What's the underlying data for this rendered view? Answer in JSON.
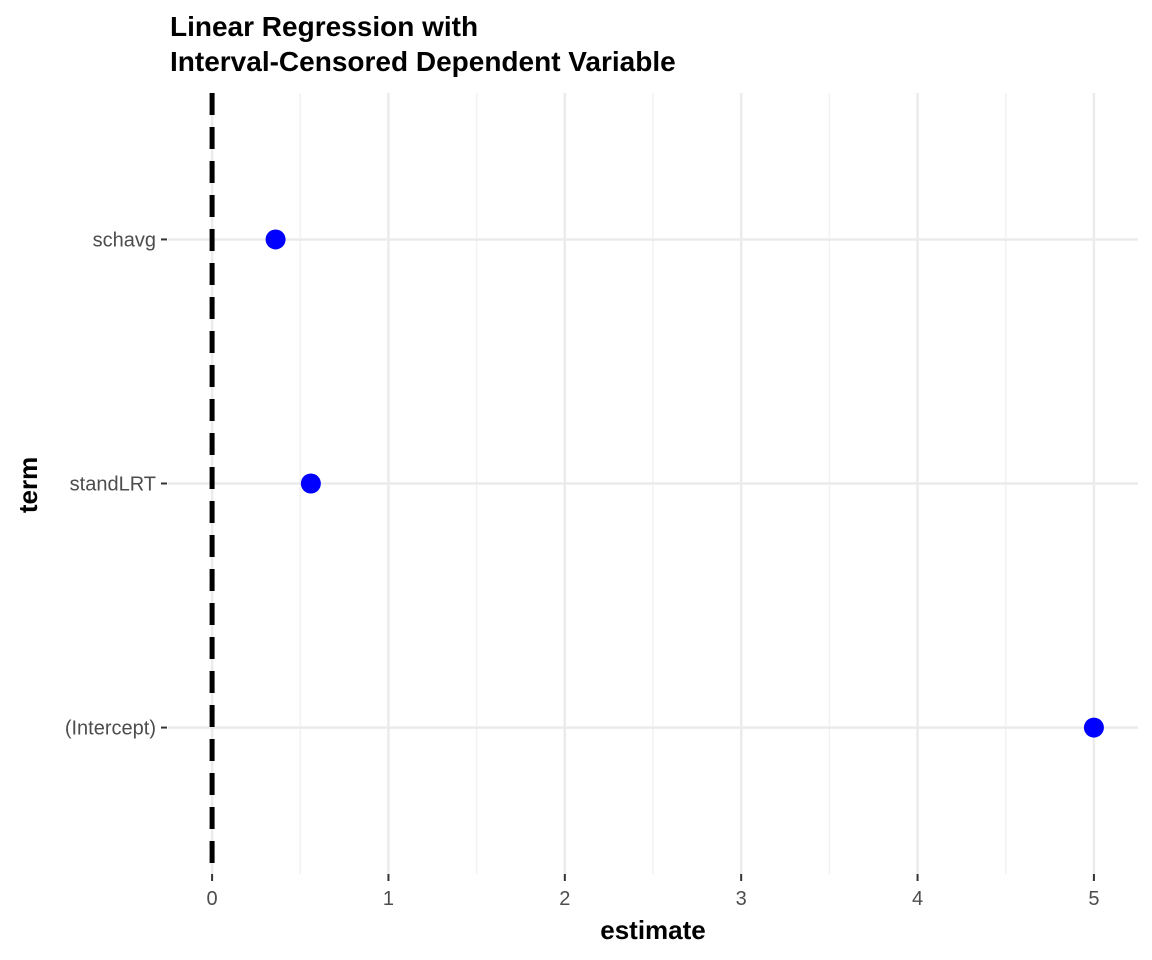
{
  "chart_data": {
    "type": "scatter",
    "title_lines": [
      "Linear Regression with",
      "Interval-Censored Dependent Variable"
    ],
    "xlabel": "estimate",
    "ylabel": "term",
    "categories": [
      "(Intercept)",
      "standLRT",
      "schavg"
    ],
    "values": [
      5.0,
      0.56,
      0.36
    ],
    "xlim": [
      -0.25,
      5.25
    ],
    "x_ticks": [
      0,
      1,
      2,
      3,
      4,
      5
    ],
    "reference_line": {
      "x": 0,
      "style": "dashed",
      "color": "#000000"
    },
    "point_color": "#0000ff",
    "grid": true
  }
}
